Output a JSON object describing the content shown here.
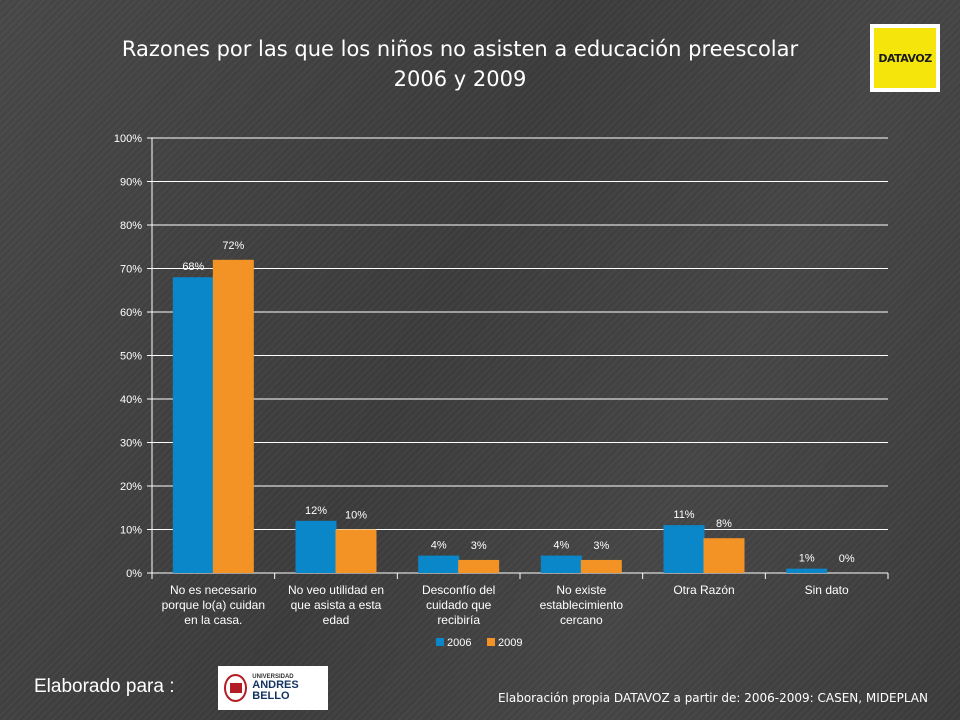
{
  "slide": {
    "title_line1": "Razones por las que los niños no asisten a educación preescolar",
    "title_line2": "2006  y 2009",
    "footer_left": "Elaborado para :",
    "footer_right": "Elaboración propia DATAVOZ a partir de: 2006-2009: CASEN, MIDEPLAN",
    "logo_datavoz_text": "DATAVOZ",
    "logo_unab_top": "UNIVERSIDAD",
    "logo_unab_bottom": "ANDRES BELLO"
  },
  "chart_data": {
    "type": "bar",
    "title": "Razones por las que los niños no asisten a educación preescolar 2006  y 2009",
    "categories": [
      [
        "No es necesario",
        "porque lo(a) cuidan",
        "en la casa."
      ],
      [
        "No veo utilidad en",
        "que asista a esta",
        "edad"
      ],
      [
        "Desconfío del",
        "cuidado que",
        "recibiría"
      ],
      [
        "No existe",
        "establecimiento",
        "cercano"
      ],
      [
        "Otra Razón"
      ],
      [
        "Sin dato"
      ]
    ],
    "series": [
      {
        "name": "2006",
        "color": "#0a87c9",
        "values": [
          68,
          12,
          4,
          4,
          11,
          1
        ],
        "labels": [
          "68%",
          "12%",
          "4%",
          "4%",
          "11%",
          "1%"
        ]
      },
      {
        "name": "2009",
        "color": "#f39325",
        "values": [
          72,
          10,
          3,
          3,
          8,
          0
        ],
        "labels": [
          "72%",
          "10%",
          "3%",
          "3%",
          "8%",
          "0%"
        ]
      }
    ],
    "yticks": [
      "0%",
      "10%",
      "20%",
      "30%",
      "40%",
      "50%",
      "60%",
      "70%",
      "80%",
      "90%",
      "100%"
    ],
    "ylim": [
      0,
      100
    ],
    "grid": true,
    "legend_position": "bottom"
  }
}
